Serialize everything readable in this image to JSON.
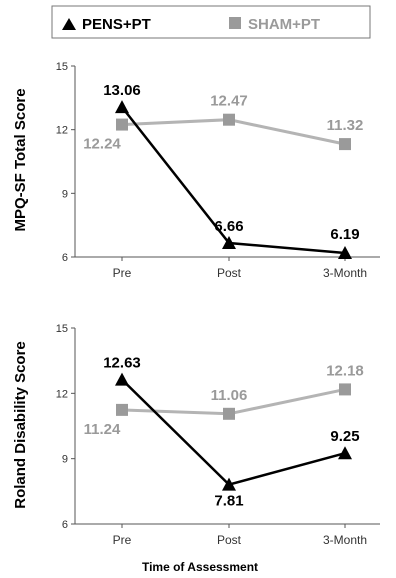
{
  "legend": {
    "items": [
      {
        "label": "PENS+PT",
        "marker": "triangle",
        "color": "#000000"
      },
      {
        "label": "SHAM+PT",
        "marker": "square",
        "color": "#9a9a9a"
      }
    ]
  },
  "chart_data": [
    {
      "type": "line",
      "ylabel": "MPQ-SF Total Score",
      "categories": [
        "Pre",
        "Post",
        "3-Month"
      ],
      "ylim": [
        6,
        15
      ],
      "yticks": [
        6,
        9,
        12,
        15
      ],
      "grid": false,
      "series": [
        {
          "name": "PENS+PT",
          "values": [
            13.06,
            6.66,
            6.19
          ],
          "labels": [
            "13.06",
            "6.66",
            "6.19"
          ]
        },
        {
          "name": "SHAM+PT",
          "values": [
            12.24,
            12.47,
            11.32
          ],
          "labels": [
            "12.24",
            "12.47",
            "11.32"
          ]
        }
      ]
    },
    {
      "type": "line",
      "ylabel": "Roland Disability Score",
      "xlabel": "Time of Assessment",
      "categories": [
        "Pre",
        "Post",
        "3-Month"
      ],
      "ylim": [
        6,
        15
      ],
      "yticks": [
        6,
        9,
        12,
        15
      ],
      "grid": false,
      "series": [
        {
          "name": "PENS+PT",
          "values": [
            12.63,
            7.81,
            9.25
          ],
          "labels": [
            "12.63",
            "7.81",
            "9.25"
          ]
        },
        {
          "name": "SHAM+PT",
          "values": [
            11.24,
            11.06,
            12.18
          ],
          "labels": [
            "11.24",
            "11.06",
            "12.18"
          ]
        }
      ]
    }
  ]
}
